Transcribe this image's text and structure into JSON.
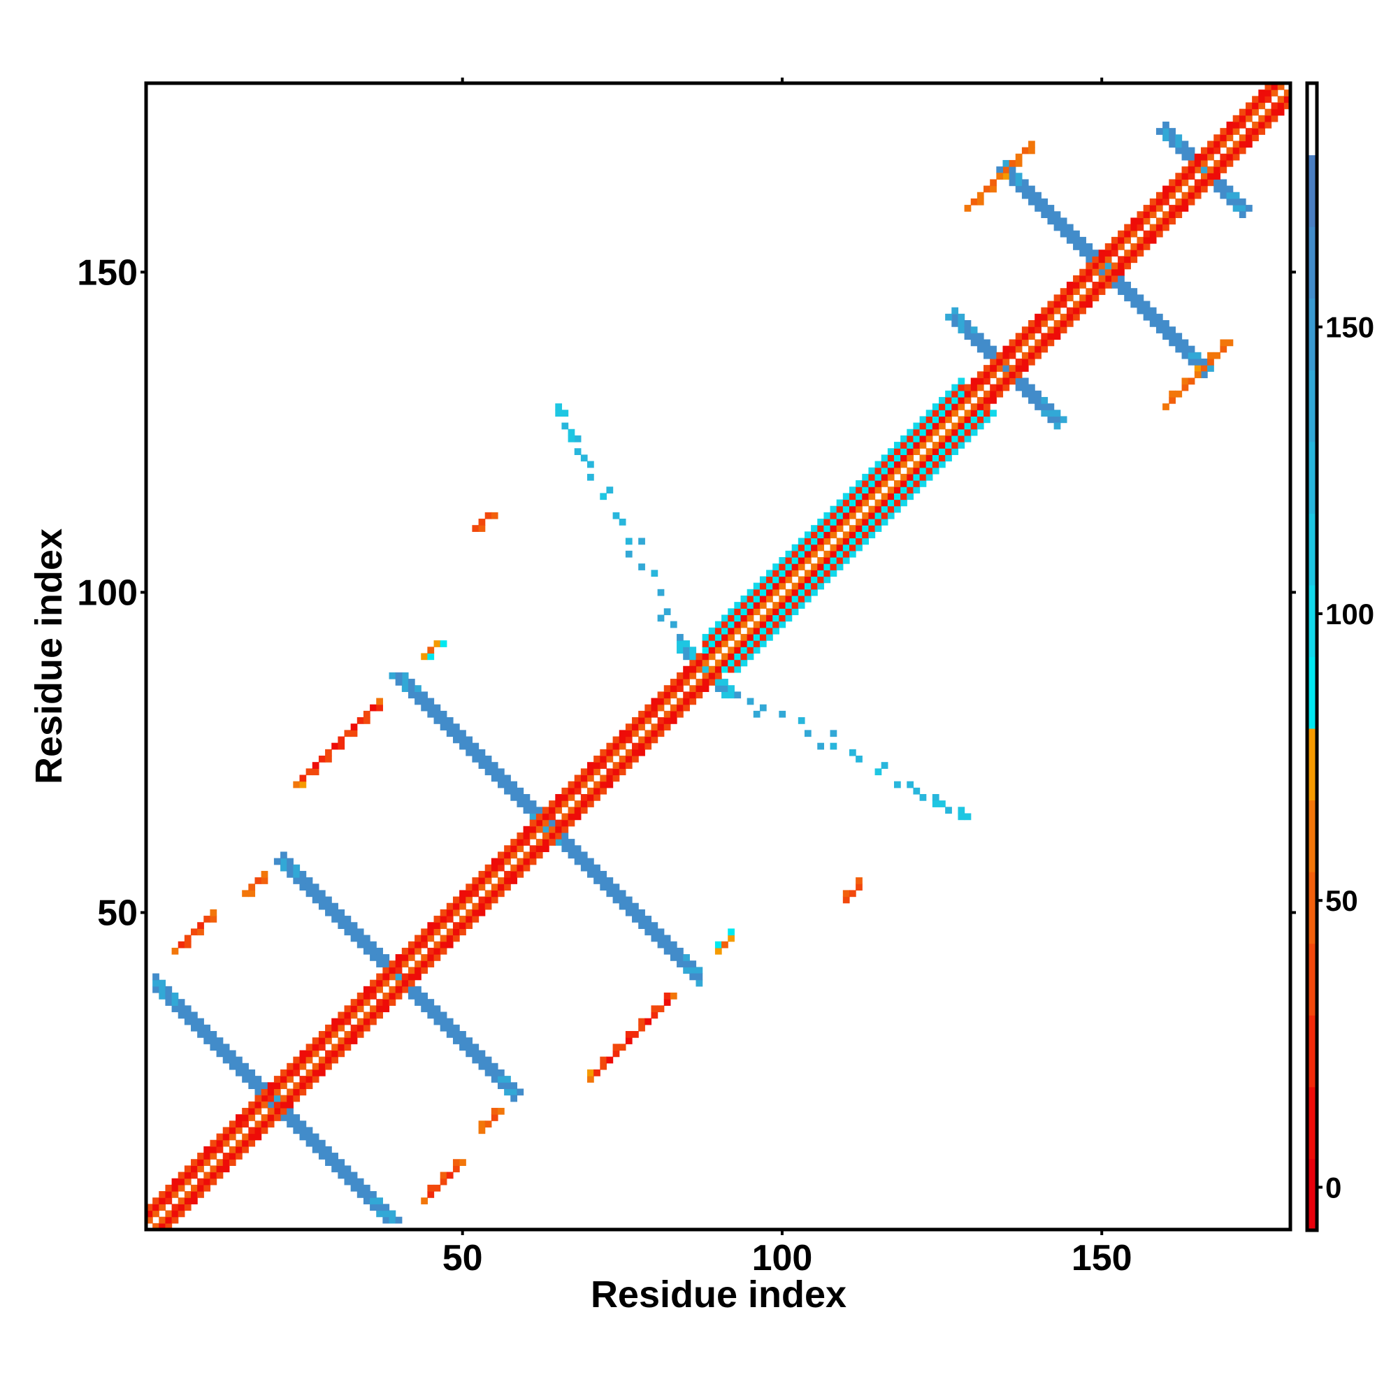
{
  "chart_data": {
    "type": "heatmap",
    "title": "",
    "xlabel": "Residue index",
    "ylabel": "Residue index",
    "xlim": [
      0.5,
      179.5
    ],
    "ylim": [
      0.5,
      179.5
    ],
    "xticks": [
      50,
      100,
      150
    ],
    "yticks": [
      50,
      100,
      150
    ],
    "symmetric": true,
    "colorbar": {
      "range": [
        -7.5,
        192.5
      ],
      "ticks": [
        0,
        50,
        100,
        150
      ],
      "bin_width": 12.5,
      "colors": [
        "#e8000b",
        "#ee0c08",
        "#f22a0a",
        "#f2480c",
        "#f2600c",
        "#f2760a",
        "#f59a00",
        "#00e8f0",
        "#12d8ea",
        "#1ec6e2",
        "#28b6dc",
        "#32a8d6",
        "#3a9ad0",
        "#428cca",
        "#4a7ec2",
        "#ffffff"
      ]
    },
    "diagonal": {
      "range": [
        1,
        179
      ],
      "offset_values": [
        null,
        45,
        6,
        40
      ],
      "helix": {
        "range": [
          88,
          128
        ],
        "offset_values": [
          null,
          62,
          8,
          86,
          22,
          95
        ]
      }
    },
    "antiparallel_strands": [
      {
        "sum": 41,
        "x": [
          2,
          38
        ],
        "value": 162,
        "end_value": 135
      },
      {
        "sum": 80,
        "x": [
          22,
          58
        ],
        "value": 162,
        "end_value": 135
      },
      {
        "sum": 127,
        "x": [
          41,
          87
        ],
        "value": 162,
        "end_value": 135
      },
      {
        "sum": 176,
        "x": [
          84,
          91
        ],
        "value": 150,
        "end_value": 110
      },
      {
        "sum": 270,
        "x": [
          127,
          143
        ],
        "value": 162,
        "end_value": 135
      },
      {
        "sum": 301,
        "x": [
          135,
          166
        ],
        "value": 162,
        "end_value": 135
      },
      {
        "sum": 332,
        "x": [
          160,
          172
        ],
        "value": 160,
        "end_value": 135
      }
    ],
    "parallel_contacts": [
      {
        "diff": 46,
        "x": [
          24,
          37
        ],
        "value": 15,
        "end_value": 60
      },
      {
        "diff": 39,
        "x": [
          5,
          11
        ],
        "value": 25,
        "end_value": 55
      },
      {
        "diff": 37,
        "x": [
          16,
          19
        ],
        "value": 35,
        "end_value": 55
      },
      {
        "diff": 46,
        "x": [
          44,
          46
        ],
        "value": 45,
        "end_value": 70
      },
      {
        "diff": 58,
        "x": [
          52,
          54
        ],
        "value": 20,
        "end_value": 40
      },
      {
        "diff": 31,
        "x": [
          129,
          139
        ],
        "value": 45,
        "end_value": 55
      }
    ],
    "sparse_points": [
      [
        65,
        129,
        105
      ],
      [
        65,
        128,
        110
      ],
      [
        66,
        128,
        110
      ],
      [
        66,
        126,
        120
      ],
      [
        67,
        125,
        115
      ],
      [
        68,
        124,
        120
      ],
      [
        67,
        124,
        110
      ],
      [
        68,
        122,
        118
      ],
      [
        69,
        121,
        122
      ],
      [
        70,
        120,
        120
      ],
      [
        70,
        118,
        125
      ],
      [
        72,
        115,
        115
      ],
      [
        73,
        116,
        118
      ],
      [
        74,
        112,
        125
      ],
      [
        75,
        111,
        120
      ],
      [
        76,
        108,
        122
      ],
      [
        78,
        108,
        140
      ],
      [
        76,
        106,
        130
      ],
      [
        78,
        104,
        135
      ],
      [
        80,
        103,
        125
      ],
      [
        81,
        100,
        140
      ],
      [
        82,
        97,
        130
      ],
      [
        83,
        95,
        140
      ],
      [
        81,
        96,
        135
      ]
    ]
  }
}
